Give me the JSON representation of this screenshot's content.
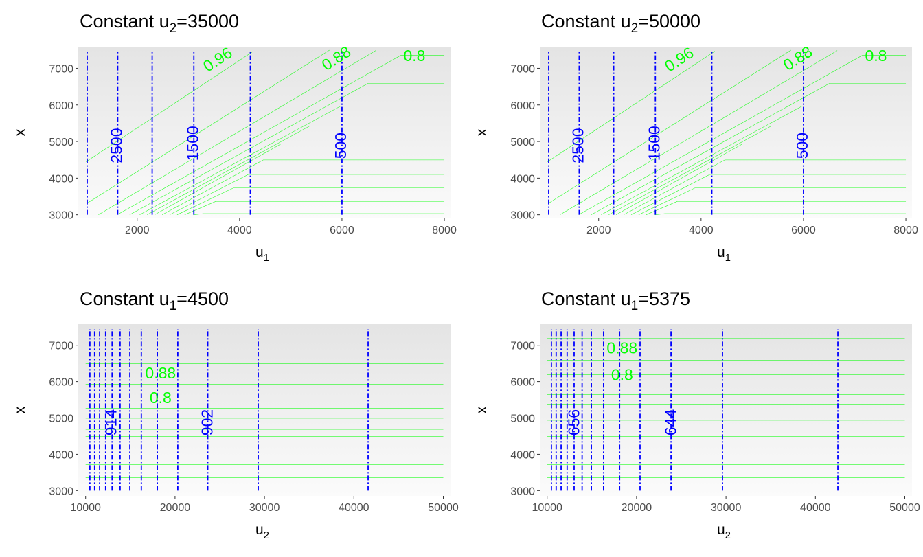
{
  "chart_data": [
    {
      "type": "contour",
      "title": {
        "prefix": "Constant u",
        "sub": "2",
        "suffix": "=35000"
      },
      "xlabel": {
        "main": "u",
        "sub": "1"
      },
      "ylabel": "x",
      "xlim": [
        850,
        8120
      ],
      "ylim": [
        2900,
        7590
      ],
      "xticks": [
        2000,
        4000,
        6000,
        8000
      ],
      "yticks": [
        3000,
        4000,
        5000,
        6000,
        7000
      ],
      "colors": {
        "contour": "#00ff00",
        "cost_line": "#0000ff",
        "bg_top": "#e4e4e4",
        "bg_bottom": "#fbfbfb"
      },
      "green_contours": [
        [
          [
            1000,
            4447
          ],
          [
            4268,
            7465
          ]
        ],
        [
          [
            1024,
            3314
          ],
          [
            5756,
            7497
          ]
        ],
        [
          [
            1244,
            3000
          ],
          [
            6659,
            7484
          ]
        ],
        [
          [
            1610,
            3000
          ],
          [
            7146,
            7352
          ],
          [
            8000,
            7352
          ]
        ],
        [
          [
            1854,
            3000
          ],
          [
            6512,
            6591
          ],
          [
            8000,
            6591
          ]
        ],
        [
          [
            2049,
            3000
          ],
          [
            5976,
            5969
          ],
          [
            8000,
            5969
          ]
        ],
        [
          [
            2195,
            3000
          ],
          [
            5366,
            5421
          ],
          [
            8000,
            5421
          ]
        ],
        [
          [
            2341,
            3000
          ],
          [
            4805,
            4931
          ],
          [
            8000,
            4931
          ]
        ],
        [
          [
            2488,
            3000
          ],
          [
            4463,
            4497
          ],
          [
            8000,
            4497
          ]
        ],
        [
          [
            2634,
            3000
          ],
          [
            4171,
            4101
          ],
          [
            8000,
            4101
          ]
        ],
        [
          [
            2780,
            3000
          ],
          [
            3878,
            3730
          ],
          [
            8000,
            3730
          ]
        ],
        [
          [
            2927,
            3000
          ],
          [
            3537,
            3365
          ],
          [
            8000,
            3365
          ]
        ],
        [
          [
            3098,
            3000
          ],
          [
            3293,
            3031
          ],
          [
            8000,
            3031
          ]
        ]
      ],
      "green_labels": [
        {
          "text": "0.96",
          "x": 3585,
          "y": 7214,
          "orientation": "along-contour"
        },
        {
          "text": "0.88",
          "x": 5902,
          "y": 7245,
          "orientation": "along-contour"
        },
        {
          "text": "0.8",
          "x": 7415,
          "y": 7308,
          "orientation": "horizontal"
        }
      ],
      "blue_lines": {
        "x": [
          1024,
          1620,
          2293,
          3107,
          4210,
          6000
        ],
        "y_range": [
          3000,
          7465
        ]
      },
      "blue_labels": [
        {
          "text": "2500",
          "x": 1620,
          "y": 4887
        },
        {
          "text": "1500",
          "x": 3107,
          "y": 4950
        },
        {
          "text": "500",
          "x": 6000,
          "y": 4887
        }
      ]
    },
    {
      "type": "contour",
      "title": {
        "prefix": "Constant u",
        "sub": "2",
        "suffix": "=50000"
      },
      "xlabel": {
        "main": "u",
        "sub": "1"
      },
      "ylabel": "x",
      "xlim": [
        850,
        8120
      ],
      "ylim": [
        2900,
        7590
      ],
      "xticks": [
        2000,
        4000,
        6000,
        8000
      ],
      "yticks": [
        3000,
        4000,
        5000,
        6000,
        7000
      ],
      "colors": {
        "contour": "#00ff00",
        "cost_line": "#0000ff",
        "bg_top": "#e4e4e4",
        "bg_bottom": "#fbfbfb"
      },
      "green_contours": [
        [
          [
            1000,
            4447
          ],
          [
            4268,
            7465
          ]
        ],
        [
          [
            1024,
            3314
          ],
          [
            5756,
            7497
          ]
        ],
        [
          [
            1244,
            3000
          ],
          [
            6659,
            7484
          ]
        ],
        [
          [
            1610,
            3000
          ],
          [
            7146,
            7352
          ],
          [
            8000,
            7352
          ]
        ],
        [
          [
            1854,
            3000
          ],
          [
            6512,
            6591
          ],
          [
            8000,
            6591
          ]
        ],
        [
          [
            2049,
            3000
          ],
          [
            5976,
            5969
          ],
          [
            8000,
            5969
          ]
        ],
        [
          [
            2195,
            3000
          ],
          [
            5366,
            5421
          ],
          [
            8000,
            5421
          ]
        ],
        [
          [
            2341,
            3000
          ],
          [
            4805,
            4931
          ],
          [
            8000,
            4931
          ]
        ],
        [
          [
            2488,
            3000
          ],
          [
            4463,
            4497
          ],
          [
            8000,
            4497
          ]
        ],
        [
          [
            2634,
            3000
          ],
          [
            4171,
            4101
          ],
          [
            8000,
            4101
          ]
        ],
        [
          [
            2780,
            3000
          ],
          [
            3878,
            3730
          ],
          [
            8000,
            3730
          ]
        ],
        [
          [
            2927,
            3000
          ],
          [
            3537,
            3365
          ],
          [
            8000,
            3365
          ]
        ],
        [
          [
            3098,
            3000
          ],
          [
            3293,
            3031
          ],
          [
            8000,
            3031
          ]
        ]
      ],
      "green_labels": [
        {
          "text": "0.96",
          "x": 3585,
          "y": 7214,
          "orientation": "along-contour"
        },
        {
          "text": "0.88",
          "x": 5902,
          "y": 7245,
          "orientation": "along-contour"
        },
        {
          "text": "0.8",
          "x": 7415,
          "y": 7308,
          "orientation": "horizontal"
        }
      ],
      "blue_lines": {
        "x": [
          1024,
          1620,
          2293,
          3107,
          4210,
          6000
        ],
        "y_range": [
          3000,
          7465
        ]
      },
      "blue_labels": [
        {
          "text": "2500",
          "x": 1620,
          "y": 4887
        },
        {
          "text": "1500",
          "x": 3107,
          "y": 4950
        },
        {
          "text": "500",
          "x": 6000,
          "y": 4887
        }
      ]
    },
    {
      "type": "contour",
      "title": {
        "prefix": "Constant u",
        "sub": "1",
        "suffix": "=4500"
      },
      "xlabel": {
        "main": "u",
        "sub": "2"
      },
      "ylabel": "x",
      "xlim": [
        9178,
        50806
      ],
      "ylim": [
        2855,
        7580
      ],
      "xticks": [
        10000,
        20000,
        30000,
        40000,
        50000
      ],
      "yticks": [
        3000,
        4000,
        5000,
        6000,
        7000
      ],
      "colors": {
        "contour": "#00ff00",
        "cost_line": "#0000ff",
        "bg_top": "#e4e4e4",
        "bg_bottom": "#fbfbfb"
      },
      "green_contours": [
        [
          [
            10000,
            6496
          ],
          [
            50000,
            6496
          ]
        ],
        [
          [
            10000,
            5929
          ],
          [
            50000,
            5929
          ]
        ],
        [
          [
            10000,
            5551
          ],
          [
            50000,
            5551
          ]
        ],
        [
          [
            10000,
            5268
          ],
          [
            50000,
            5268
          ]
        ],
        [
          [
            10000,
            4991
          ],
          [
            50000,
            4991
          ]
        ],
        [
          [
            10000,
            4688
          ],
          [
            50000,
            4688
          ]
        ],
        [
          [
            10000,
            4493
          ],
          [
            50000,
            4493
          ]
        ],
        [
          [
            10000,
            4096
          ],
          [
            50000,
            4096
          ]
        ],
        [
          [
            10000,
            3718
          ],
          [
            50000,
            3718
          ]
        ],
        [
          [
            10000,
            3359
          ],
          [
            50000,
            3359
          ]
        ],
        [
          [
            10000,
            3019
          ],
          [
            50000,
            3019
          ]
        ]
      ],
      "green_labels": [
        {
          "text": "0.88",
          "x": 18380,
          "y": 6200,
          "orientation": "horizontal"
        },
        {
          "text": "0.8",
          "x": 18380,
          "y": 5520,
          "orientation": "horizontal"
        }
      ],
      "blue_lines": {
        "x": [
          10475,
          11006,
          11564,
          12235,
          12961,
          13855,
          14944,
          16229,
          18017,
          20307,
          23659,
          29302,
          41592
        ],
        "y_range": [
          3000,
          7447
        ]
      },
      "blue_labels": [
        {
          "text": "914",
          "x": 12989,
          "y": 4877
        },
        {
          "text": "902",
          "x": 23743,
          "y": 4877
        }
      ]
    },
    {
      "type": "contour",
      "title": {
        "prefix": "Constant u",
        "sub": "1",
        "suffix": "=5375"
      },
      "xlabel": {
        "main": "u",
        "sub": "2"
      },
      "ylabel": "x",
      "xlim": [
        9178,
        50806
      ],
      "ylim": [
        2855,
        7580
      ],
      "xticks": [
        10000,
        20000,
        30000,
        40000,
        50000
      ],
      "yticks": [
        3000,
        4000,
        5000,
        6000,
        7000
      ],
      "colors": {
        "contour": "#00ff00",
        "cost_line": "#0000ff",
        "bg_top": "#e4e4e4",
        "bg_bottom": "#fbfbfb"
      },
      "green_contours": [
        [
          [
            10000,
            7195
          ],
          [
            50000,
            7195
          ]
        ],
        [
          [
            10000,
            6591
          ],
          [
            50000,
            6591
          ]
        ],
        [
          [
            10000,
            6194
          ],
          [
            50000,
            6194
          ]
        ],
        [
          [
            10000,
            5910
          ],
          [
            50000,
            5910
          ]
        ],
        [
          [
            10000,
            5646
          ],
          [
            50000,
            5646
          ]
        ],
        [
          [
            10000,
            5381
          ],
          [
            50000,
            5381
          ]
        ],
        [
          [
            10000,
            4934
          ],
          [
            50000,
            4934
          ]
        ],
        [
          [
            10000,
            4493
          ],
          [
            50000,
            4493
          ]
        ],
        [
          [
            10000,
            4096
          ],
          [
            50000,
            4096
          ]
        ],
        [
          [
            10000,
            3718
          ],
          [
            50000,
            3718
          ]
        ],
        [
          [
            10000,
            3359
          ],
          [
            50000,
            3359
          ]
        ],
        [
          [
            10000,
            3019
          ],
          [
            50000,
            3019
          ]
        ]
      ],
      "green_labels": [
        {
          "text": "0.88",
          "x": 18380,
          "y": 6893,
          "orientation": "horizontal"
        },
        {
          "text": "0.8",
          "x": 18380,
          "y": 6150,
          "orientation": "horizontal"
        }
      ],
      "blue_lines": {
        "x": [
          10475,
          11006,
          11564,
          12235,
          13017,
          13911,
          14944,
          16313,
          18101,
          20391,
          23855,
          29609,
          42514
        ],
        "y_range": [
          3000,
          7447
        ]
      },
      "blue_labels": [
        {
          "text": "656",
          "x": 13128,
          "y": 4877
        },
        {
          "text": "644",
          "x": 23939,
          "y": 4877
        }
      ]
    }
  ]
}
